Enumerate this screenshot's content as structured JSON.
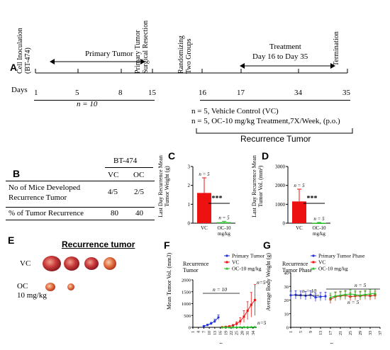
{
  "panelA": {
    "letter": "A",
    "events": [
      "Cell Inoculation\n(BT-474)",
      "Primary Tumor\nSurgical Resection",
      "Randomizing\nTwo Groups",
      "Termination"
    ],
    "primary_tumor_label": "Primary Tumor",
    "treatment_label": "Treatment",
    "treatment_days": "Day 16 to Day 35",
    "days_label": "Days",
    "days": [
      "1",
      "5",
      "8",
      "15",
      "16",
      "17",
      "34",
      "35"
    ],
    "n_primary": "n = 10",
    "n_vc": "n = 5, Vehicle Control (VC)",
    "n_oc": "n = 5, OC-10 mg/kg Treatment,7X/Week, (p.o.)",
    "recurrence_label": "Recurrence Tumor"
  },
  "panelB": {
    "letter": "B",
    "header_group": "BT-474",
    "col_vc": "VC",
    "col_oc": "OC",
    "row1_label": "No of Mice Developed\nRecurrence Tumor",
    "row1_vc": "4/5",
    "row1_oc": "2/5",
    "row2_label": "% of Tumor Recurrence",
    "row2_vc": "80",
    "row2_oc": "40"
  },
  "panelC": {
    "letter": "C",
    "ylabel": "Last Day Recurrence Mean\nTumor Weight (g)",
    "yticks": [
      "0",
      "1",
      "2",
      "3"
    ],
    "categories": [
      "VC",
      "OC-10\nmg/kg"
    ],
    "n_vc": "n = 5",
    "n_oc": "n = 5",
    "sig": "***"
  },
  "panelD": {
    "letter": "D",
    "ylabel": "Last Day Recurrence Mean\nTumor Vol. (mm³)",
    "yticks": [
      "0",
      "1000",
      "2000",
      "3000"
    ],
    "categories": [
      "VC",
      "OC-10\nmg/kg"
    ],
    "n_vc": "n = 5",
    "n_oc": "n = 5",
    "sig": "***"
  },
  "panelE": {
    "letter": "E",
    "title": "Recurrence tumor",
    "row_vc": "VC",
    "row_oc": "OC\n10 mg/kg"
  },
  "panelF": {
    "letter": "F",
    "ylabel": "Mean Tumor Vol. (mm3)",
    "xlabel": "Days",
    "yticks": [
      "0",
      "500",
      "1000",
      "1500",
      "2000"
    ],
    "xticks": [
      "1",
      "4",
      "7",
      "10",
      "13",
      "16",
      "19",
      "22",
      "25",
      "28",
      "31",
      "34"
    ],
    "legend_group": "Recurrence\nTumor",
    "legend": [
      "Primary Tumor",
      "VC",
      "OC-10 mg/kg"
    ],
    "n10": "n = 10",
    "n5a": "n=5",
    "n5b": "n=5"
  },
  "panelG": {
    "letter": "G",
    "ylabel": "Average Body Weight (g)",
    "xlabel": "Days",
    "yticks": [
      "0",
      "10",
      "20",
      "30",
      "40"
    ],
    "xticks": [
      "1",
      "5",
      "9",
      "13",
      "17",
      "21",
      "25",
      "29",
      "33",
      "37"
    ],
    "legend_group": "Recurrence\nTumor Phase",
    "legend": [
      "Primary Tumor Phase",
      "VC",
      "OC-10 mg/kg"
    ],
    "n10": "n = 10",
    "n5a": "n = 5",
    "n5b": "n = 5"
  },
  "colors": {
    "primary": "#2233dd",
    "vc": "#ee1111",
    "oc": "#22bb22"
  },
  "chart_data": [
    {
      "type": "bar",
      "categories": [
        "VC",
        "OC-10 mg/kg"
      ],
      "values": [
        1.6,
        0.05
      ],
      "errors": [
        0.8,
        0.05
      ],
      "ylabel": "Last Day Recurrence Mean Tumor Weight (g)",
      "ylim": [
        0,
        3
      ]
    },
    {
      "type": "bar",
      "categories": [
        "VC",
        "OC-10 mg/kg"
      ],
      "values": [
        1150,
        20
      ],
      "errors": [
        650,
        20
      ],
      "ylabel": "Last Day Recurrence Mean Tumor Vol. (mm³)",
      "ylim": [
        0,
        3000
      ]
    },
    {
      "type": "line",
      "xlabel": "Days",
      "ylabel": "Mean Tumor Vol. (mm3)",
      "ylim": [
        0,
        2000
      ],
      "series": [
        {
          "name": "Primary Tumor",
          "x": [
            7,
            9,
            11,
            13,
            15
          ],
          "y": [
            50,
            100,
            160,
            260,
            420
          ],
          "err": [
            20,
            30,
            50,
            80,
            100
          ]
        },
        {
          "name": "VC",
          "x": [
            17,
            19,
            21,
            23,
            25,
            27,
            29,
            31,
            33,
            35
          ],
          "y": [
            5,
            20,
            40,
            80,
            150,
            260,
            450,
            700,
            950,
            1150
          ],
          "err": [
            5,
            10,
            20,
            40,
            80,
            150,
            250,
            380,
            520,
            650
          ]
        },
        {
          "name": "OC-10 mg/kg",
          "x": [
            17,
            19,
            21,
            23,
            25,
            27,
            29,
            31,
            33,
            35
          ],
          "y": [
            2,
            3,
            4,
            5,
            6,
            7,
            8,
            10,
            12,
            15
          ],
          "err": [
            1,
            1,
            2,
            2,
            3,
            3,
            4,
            5,
            6,
            8
          ]
        }
      ]
    },
    {
      "type": "line",
      "xlabel": "Days",
      "ylabel": "Average Body Weight (g)",
      "ylim": [
        0,
        40
      ],
      "series": [
        {
          "name": "Primary Tumor Phase",
          "x": [
            1,
            3,
            5,
            7,
            9,
            11,
            13,
            15
          ],
          "y": [
            23.5,
            23.8,
            23.6,
            23.2,
            23.8,
            22,
            22.5,
            22.8
          ],
          "err": [
            3,
            3,
            3,
            3,
            3,
            3,
            3,
            3
          ]
        },
        {
          "name": "VC",
          "x": [
            17,
            19,
            21,
            23,
            25,
            27,
            29,
            31,
            33,
            35
          ],
          "y": [
            20.5,
            22.5,
            23,
            23.5,
            22.5,
            23,
            23,
            23.5,
            23,
            23.5
          ],
          "err": [
            3,
            3,
            3,
            3,
            3,
            3,
            3,
            3,
            3,
            3
          ]
        },
        {
          "name": "OC-10 mg/kg",
          "x": [
            17,
            19,
            21,
            23,
            25,
            27,
            29,
            31,
            33,
            35
          ],
          "y": [
            22,
            23,
            23.5,
            24,
            24.5,
            24,
            23.5,
            24,
            24.5,
            25
          ],
          "err": [
            3,
            3,
            3,
            3,
            3,
            3,
            3,
            3,
            3,
            3
          ]
        }
      ]
    }
  ]
}
